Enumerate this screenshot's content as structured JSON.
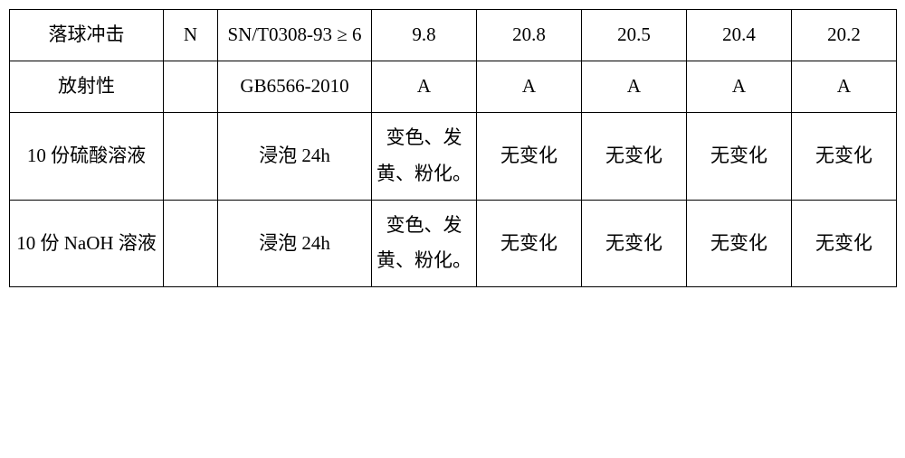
{
  "table": {
    "columns": [
      "c1",
      "c2",
      "c3",
      "c4",
      "c5",
      "c6",
      "c7",
      "c8"
    ],
    "rows": [
      {
        "cells": [
          "落球冲击",
          "N",
          "SN/T0308-93 ≥ 6",
          "9.8",
          "20.8",
          "20.5",
          "20.4",
          "20.2"
        ]
      },
      {
        "cells": [
          "放射性",
          "",
          "GB6566-2010",
          "A",
          "A",
          "A",
          "A",
          "A"
        ]
      },
      {
        "cells": [
          "10 份硫酸溶液",
          "",
          "浸泡 24h",
          "变色、发黄、粉化。",
          "无变化",
          "无变化",
          "无变化",
          "无变化"
        ]
      },
      {
        "cells": [
          "10 份 NaOH 溶液",
          "",
          "浸泡 24h",
          "变色、发黄、粉化。",
          "无变化",
          "无变化",
          "无变化",
          "无变化"
        ]
      }
    ],
    "border_color": "#000000",
    "background_color": "#ffffff",
    "text_color": "#000000",
    "font_size_pt": 16,
    "font_family": "SimSun"
  }
}
